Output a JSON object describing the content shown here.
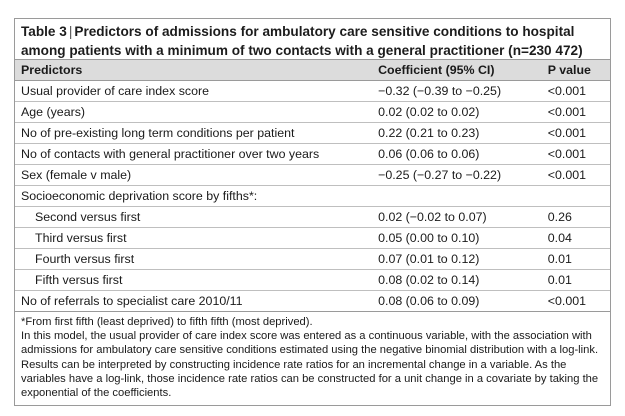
{
  "caption": {
    "label": "Table 3",
    "separator": "|",
    "title": "Predictors of admissions for ambulatory care sensitive conditions to hospital among patients with a minimum of two contacts with a general practitioner (n=230 472)"
  },
  "columns": [
    "Predictors",
    "Coefficient (95% CI)",
    "P value"
  ],
  "rows": [
    {
      "predictor": "Usual provider of care index score",
      "coefficient": "−0.32 (−0.39 to −0.25)",
      "p": "<0.001"
    },
    {
      "predictor": "Age (years)",
      "coefficient": "0.02 (0.02 to 0.02)",
      "p": "<0.001"
    },
    {
      "predictor": "No of pre-existing long term conditions per patient",
      "coefficient": "0.22 (0.21 to 0.23)",
      "p": "<0.001"
    },
    {
      "predictor": "No of contacts with general practitioner over two years",
      "coefficient": "0.06 (0.06 to 0.06)",
      "p": "<0.001"
    },
    {
      "predictor": "Sex (female v male)",
      "coefficient": "−0.25 (−0.27 to −0.22)",
      "p": "<0.001"
    },
    {
      "predictor": "Socioeconomic deprivation score by fifths*:",
      "coefficient": "",
      "p": ""
    },
    {
      "predictor": "Second versus first",
      "coefficient": "0.02 (−0.02 to 0.07)",
      "p": "0.26"
    },
    {
      "predictor": "Third versus first",
      "coefficient": "0.05 (0.00 to 0.10)",
      "p": "0.04"
    },
    {
      "predictor": "Fourth versus first",
      "coefficient": "0.07 (0.01 to 0.12)",
      "p": "0.01"
    },
    {
      "predictor": "Fifth versus first",
      "coefficient": "0.08 (0.02 to 0.14)",
      "p": "0.01"
    },
    {
      "predictor": "No of referrals to specialist care 2010/11",
      "coefficient": "0.08 (0.06 to 0.09)",
      "p": "<0.001"
    }
  ],
  "footnotes": [
    "*From first fifth (least deprived) to fifth fifth (most deprived).",
    "In this model, the usual provider of care index score was entered as a continuous variable, with the association with admissions for ambulatory care sensitive conditions estimated using the negative binomial distribution with a log-link. Results can be interpreted by constructing incidence rate ratios for an incremental change in a variable. As the variables have a log-link, those incidence rate ratios can be constructed for a unit change in a covariate by taking the exponential of the coefficients."
  ]
}
